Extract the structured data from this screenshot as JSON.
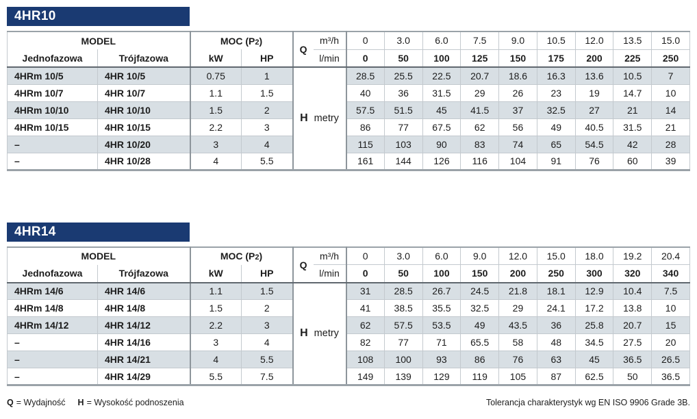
{
  "labels": {
    "model": "MODEL",
    "single_phase": "Jednofazowa",
    "three_phase": "Trójfazowa",
    "moc_prefix": "MOC (P",
    "moc_sub": "2",
    "moc_suffix": ")",
    "kw": "kW",
    "hp": "HP",
    "q_symbol": "Q",
    "m3h": "m³/h",
    "lmin": "l/min",
    "h_symbol": "H",
    "h_unit": "metry"
  },
  "colors": {
    "title_bar": "#1a3a72",
    "row_shade": "#d8dfe4",
    "border_thin": "#c3c9ce",
    "border_thick": "#8d959b",
    "header_rule": "#5f676e"
  },
  "tables": [
    {
      "title": "4HR10",
      "flow_m3h": [
        "0",
        "3.0",
        "6.0",
        "7.5",
        "9.0",
        "10.5",
        "12.0",
        "13.5",
        "15.0"
      ],
      "flow_lmin": [
        "0",
        "50",
        "100",
        "125",
        "150",
        "175",
        "200",
        "225",
        "250"
      ],
      "rows": [
        {
          "single_phase": "4HRm 10/5",
          "three_phase": "4HR 10/5",
          "kw": "0.75",
          "hp": "1",
          "head_m": [
            "28.5",
            "25.5",
            "22.5",
            "20.7",
            "18.6",
            "16.3",
            "13.6",
            "10.5",
            "7"
          ]
        },
        {
          "single_phase": "4HRm 10/7",
          "three_phase": "4HR 10/7",
          "kw": "1.1",
          "hp": "1.5",
          "head_m": [
            "40",
            "36",
            "31.5",
            "29",
            "26",
            "23",
            "19",
            "14.7",
            "10"
          ]
        },
        {
          "single_phase": "4HRm 10/10",
          "three_phase": "4HR 10/10",
          "kw": "1.5",
          "hp": "2",
          "head_m": [
            "57.5",
            "51.5",
            "45",
            "41.5",
            "37",
            "32.5",
            "27",
            "21",
            "14"
          ]
        },
        {
          "single_phase": "4HRm 10/15",
          "three_phase": "4HR 10/15",
          "kw": "2.2",
          "hp": "3",
          "head_m": [
            "86",
            "77",
            "67.5",
            "62",
            "56",
            "49",
            "40.5",
            "31.5",
            "21"
          ]
        },
        {
          "single_phase": "–",
          "three_phase": "4HR 10/20",
          "kw": "3",
          "hp": "4",
          "head_m": [
            "115",
            "103",
            "90",
            "83",
            "74",
            "65",
            "54.5",
            "42",
            "28"
          ]
        },
        {
          "single_phase": "–",
          "three_phase": "4HR 10/28",
          "kw": "4",
          "hp": "5.5",
          "head_m": [
            "161",
            "144",
            "126",
            "116",
            "104",
            "91",
            "76",
            "60",
            "39"
          ]
        }
      ]
    },
    {
      "title": "4HR14",
      "flow_m3h": [
        "0",
        "3.0",
        "6.0",
        "9.0",
        "12.0",
        "15.0",
        "18.0",
        "19.2",
        "20.4"
      ],
      "flow_lmin": [
        "0",
        "50",
        "100",
        "150",
        "200",
        "250",
        "300",
        "320",
        "340"
      ],
      "rows": [
        {
          "single_phase": "4HRm 14/6",
          "three_phase": "4HR 14/6",
          "kw": "1.1",
          "hp": "1.5",
          "head_m": [
            "31",
            "28.5",
            "26.7",
            "24.5",
            "21.8",
            "18.1",
            "12.9",
            "10.4",
            "7.5"
          ]
        },
        {
          "single_phase": "4HRm 14/8",
          "three_phase": "4HR 14/8",
          "kw": "1.5",
          "hp": "2",
          "head_m": [
            "41",
            "38.5",
            "35.5",
            "32.5",
            "29",
            "24.1",
            "17.2",
            "13.8",
            "10"
          ]
        },
        {
          "single_phase": "4HRm 14/12",
          "three_phase": "4HR 14/12",
          "kw": "2.2",
          "hp": "3",
          "head_m": [
            "62",
            "57.5",
            "53.5",
            "49",
            "43.5",
            "36",
            "25.8",
            "20.7",
            "15"
          ]
        },
        {
          "single_phase": "–",
          "three_phase": "4HR 14/16",
          "kw": "3",
          "hp": "4",
          "head_m": [
            "82",
            "77",
            "71",
            "65.5",
            "58",
            "48",
            "34.5",
            "27.5",
            "20"
          ]
        },
        {
          "single_phase": "–",
          "three_phase": "4HR 14/21",
          "kw": "4",
          "hp": "5.5",
          "head_m": [
            "108",
            "100",
            "93",
            "86",
            "76",
            "63",
            "45",
            "36.5",
            "26.5"
          ]
        },
        {
          "single_phase": "–",
          "three_phase": "4HR 14/29",
          "kw": "5.5",
          "hp": "7.5",
          "head_m": [
            "149",
            "139",
            "129",
            "119",
            "105",
            "87",
            "62.5",
            "50",
            "36.5"
          ]
        }
      ]
    }
  ],
  "footer": {
    "q_symbol": "Q",
    "q_definition": "= Wydajność",
    "h_symbol": "H",
    "h_definition": "= Wysokość podnoszenia",
    "tolerance_note": "Tolerancja charakterystyk wg EN ISO 9906 Grade 3B."
  }
}
